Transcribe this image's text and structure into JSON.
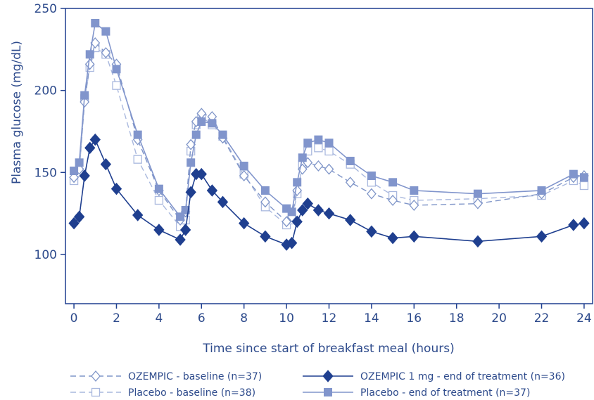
{
  "chart_data": {
    "type": "line",
    "title": "",
    "xlabel": "Time since start of breakfast meal (hours)",
    "ylabel": "Plasma glucose (mg/dL)",
    "xlim": [
      -0.4,
      24.4
    ],
    "ylim": [
      70,
      250
    ],
    "xticks": [
      0,
      2,
      4,
      6,
      8,
      10,
      12,
      14,
      16,
      18,
      20,
      22,
      24
    ],
    "yticks": [
      100,
      150,
      200,
      250
    ],
    "grid": false,
    "legend_position": "bottom",
    "colors": {
      "axis": "#1f3f8f",
      "text": "#2e4b8c",
      "ozempic_baseline": "#7f95c8",
      "placebo_baseline": "#a9b8de",
      "ozempic_treatment": "#1f3f8f",
      "placebo_treatment": "#8195cc"
    },
    "series": [
      {
        "name": "OZEMPIC - baseline (n=37)",
        "style": "dashed",
        "marker": "diamond-open",
        "color": "#7f95c8",
        "x": [
          0,
          0.25,
          0.5,
          0.75,
          1,
          1.5,
          2,
          3,
          4,
          5,
          5.25,
          5.5,
          5.75,
          6,
          6.5,
          7,
          8,
          9,
          10,
          10.25,
          10.5,
          10.75,
          11,
          11.5,
          12,
          13,
          14,
          15,
          16,
          19,
          22,
          23.5,
          24
        ],
        "y": [
          147,
          152,
          193,
          216,
          229,
          223,
          216,
          170,
          139,
          121,
          126,
          167,
          181,
          186,
          184,
          171,
          148,
          132,
          120,
          123,
          139,
          152,
          156,
          154,
          152,
          144,
          137,
          133,
          130,
          131,
          137,
          147,
          148
        ]
      },
      {
        "name": "Placebo - baseline (n=38)",
        "style": "dashed",
        "marker": "square-open",
        "color": "#a9b8de",
        "x": [
          0,
          0.25,
          0.5,
          0.75,
          1,
          1.5,
          2,
          3,
          4,
          5,
          5.25,
          5.5,
          5.75,
          6,
          6.5,
          7,
          8,
          9,
          10,
          10.25,
          10.5,
          10.75,
          11,
          11.5,
          12,
          13,
          14,
          15,
          16,
          19,
          22,
          23.5,
          24
        ],
        "y": [
          145,
          150,
          195,
          214,
          226,
          222,
          203,
          158,
          133,
          117,
          121,
          163,
          179,
          184,
          179,
          172,
          149,
          129,
          118,
          121,
          137,
          155,
          163,
          165,
          163,
          155,
          144,
          136,
          133,
          134,
          136,
          145,
          142
        ]
      },
      {
        "name": "OZEMPIC 1 mg - end of treatment (n=36)",
        "style": "solid",
        "marker": "diamond-filled",
        "color": "#1f3f8f",
        "x": [
          0,
          0.25,
          0.5,
          0.75,
          1,
          1.5,
          2,
          3,
          4,
          5,
          5.25,
          5.5,
          5.75,
          6,
          6.5,
          7,
          8,
          9,
          10,
          10.25,
          10.5,
          10.75,
          11,
          11.5,
          12,
          13,
          14,
          15,
          16,
          19,
          22,
          23.5,
          24
        ],
        "y": [
          119,
          123,
          148,
          165,
          170,
          155,
          140,
          124,
          115,
          109,
          115,
          138,
          149,
          149,
          139,
          132,
          119,
          111,
          106,
          107,
          120,
          127,
          131,
          127,
          125,
          121,
          114,
          110,
          111,
          108,
          111,
          118,
          119
        ]
      },
      {
        "name": "Placebo - end of treatment (n=37)",
        "style": "solid",
        "marker": "square-filled",
        "color": "#8195cc",
        "x": [
          0,
          0.25,
          0.5,
          0.75,
          1,
          1.5,
          2,
          3,
          4,
          5,
          5.25,
          5.5,
          5.75,
          6,
          6.5,
          7,
          8,
          9,
          10,
          10.25,
          10.5,
          10.75,
          11,
          11.5,
          12,
          13,
          14,
          15,
          16,
          19,
          22,
          23.5,
          24
        ],
        "y": [
          151,
          156,
          197,
          222,
          241,
          236,
          213,
          173,
          140,
          123,
          127,
          156,
          173,
          181,
          180,
          173,
          154,
          139,
          128,
          126,
          144,
          159,
          168,
          170,
          168,
          157,
          148,
          144,
          139,
          137,
          139,
          149,
          147
        ]
      }
    ],
    "legend": [
      {
        "series": 0,
        "label": "OZEMPIC - baseline (n=37)"
      },
      {
        "series": 2,
        "label": "OZEMPIC 1 mg - end of treatment (n=36)"
      },
      {
        "series": 1,
        "label": "Placebo - baseline (n=38)"
      },
      {
        "series": 3,
        "label": "Placebo - end of treatment (n=37)"
      }
    ]
  }
}
